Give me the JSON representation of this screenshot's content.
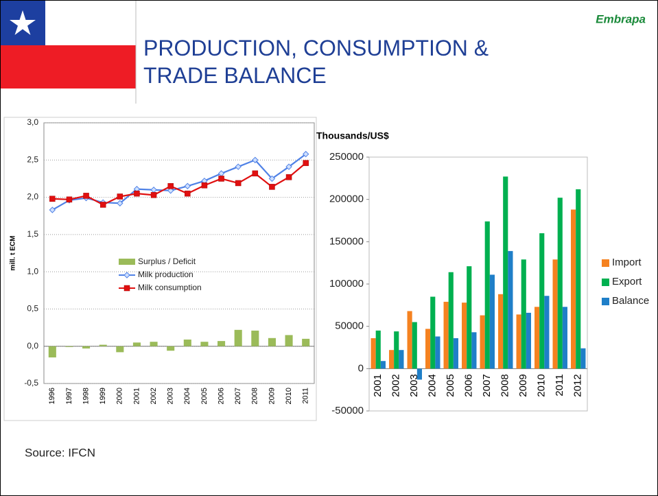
{
  "title": "PRODUCTION, CONSUMPTION & TRADE BALANCE",
  "logo": "Embrapa",
  "source": "Source: IFCN",
  "chart_data": [
    {
      "type": "bar-line",
      "ylabel": "mill. t ECM",
      "categories": [
        "1996",
        "1997",
        "1998",
        "1999",
        "2000",
        "2001",
        "2002",
        "2003",
        "2004",
        "2005",
        "2006",
        "2007",
        "2008",
        "2009",
        "2010",
        "2011"
      ],
      "series": [
        {
          "name": "Surplus / Deficit",
          "type": "bar",
          "color": "#9bbb59",
          "values": [
            -0.15,
            -0.01,
            -0.03,
            0.02,
            -0.08,
            0.05,
            0.06,
            -0.06,
            0.09,
            0.06,
            0.07,
            0.22,
            0.21,
            0.11,
            0.15,
            0.1
          ]
        },
        {
          "name": "Milk production",
          "type": "line",
          "marker": "diamond",
          "color": "#4f81e6",
          "values": [
            1.83,
            1.96,
            1.99,
            1.93,
            1.92,
            2.11,
            2.1,
            2.09,
            2.15,
            2.22,
            2.32,
            2.41,
            2.5,
            2.25,
            2.41,
            2.58
          ]
        },
        {
          "name": "Milk consumption",
          "type": "line",
          "marker": "square",
          "color": "#e01010",
          "values": [
            1.98,
            1.97,
            2.02,
            1.9,
            2.01,
            2.05,
            2.03,
            2.15,
            2.05,
            2.16,
            2.25,
            2.19,
            2.32,
            2.14,
            2.27,
            2.46
          ]
        }
      ],
      "ylim": [
        -0.5,
        3
      ],
      "yticks": [
        {
          "value": -0.5,
          "label": "-0,5"
        },
        {
          "value": 0,
          "label": "0,0"
        },
        {
          "value": 0.5,
          "label": "0,5"
        },
        {
          "value": 1,
          "label": "1,0"
        },
        {
          "value": 1.5,
          "label": "1,5"
        },
        {
          "value": 2,
          "label": "2,0"
        },
        {
          "value": 2.5,
          "label": "2,5"
        },
        {
          "value": 3,
          "label": "3,0"
        }
      ],
      "grid": true,
      "legend": "center"
    },
    {
      "type": "bar",
      "ylabel": "Thousands/US$",
      "categories": [
        "2001",
        "2002",
        "2003",
        "2004",
        "2005",
        "2006",
        "2007",
        "2008",
        "2009",
        "2010",
        "2011",
        "2012"
      ],
      "series": [
        {
          "name": "Import",
          "color": "#f58220",
          "values": [
            36000,
            22000,
            68000,
            47000,
            79000,
            78000,
            63000,
            88000,
            64000,
            73000,
            129000,
            188000
          ]
        },
        {
          "name": "Export",
          "color": "#00b050",
          "values": [
            45000,
            44000,
            55000,
            85000,
            114000,
            121000,
            174000,
            227000,
            129000,
            160000,
            202000,
            212000
          ]
        },
        {
          "name": "Balance",
          "color": "#1f7fc8",
          "values": [
            9000,
            22000,
            -13000,
            38000,
            36000,
            43000,
            111000,
            139000,
            66000,
            86000,
            73000,
            24000
          ]
        }
      ],
      "ylim": [
        -50000,
        250000
      ],
      "yticks": [
        -50000,
        0,
        50000,
        100000,
        150000,
        200000,
        250000
      ],
      "grid": false,
      "legend": "right"
    }
  ]
}
